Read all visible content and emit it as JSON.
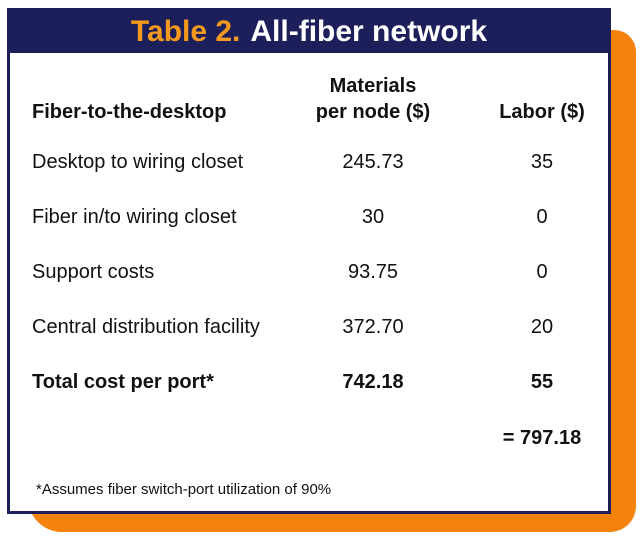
{
  "table": {
    "number": "Table 2.",
    "title": "All-fiber network",
    "headers": {
      "row_label": "Fiber-to-the-desktop",
      "materials_line1": "Materials",
      "materials_line2": "per node ($)",
      "labor": "Labor ($)"
    },
    "rows": [
      {
        "label": "Desktop to wiring closet",
        "materials": "245.73",
        "labor": "35"
      },
      {
        "label": "Fiber in/to wiring closet",
        "materials": "30",
        "labor": "0"
      },
      {
        "label": "Support costs",
        "materials": "93.75",
        "labor": "0"
      },
      {
        "label": "Central distribution facility",
        "materials": "372.70",
        "labor": "20"
      }
    ],
    "total": {
      "label": "Total cost per port*",
      "materials": "742.18",
      "labor": "55"
    },
    "grand_total": "= 797.18",
    "footnote": "*Assumes fiber switch-port utilization of 90%"
  },
  "colors": {
    "title_bg": "#1c1f5a",
    "title_number": "#f39a1e",
    "shadow": "#f5820c"
  }
}
